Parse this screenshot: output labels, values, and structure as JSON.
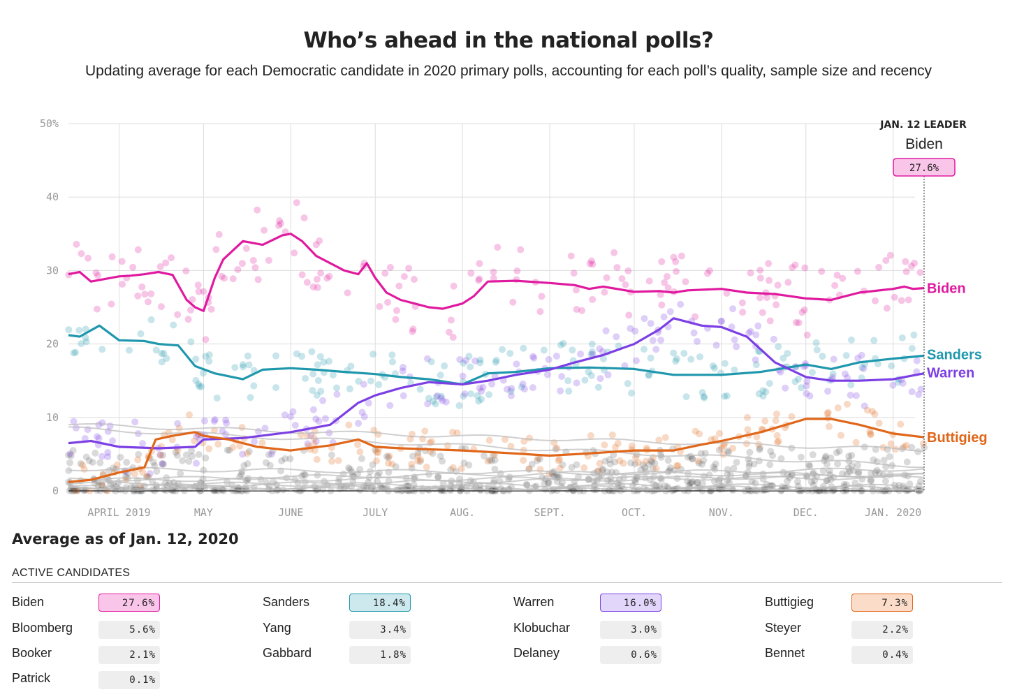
{
  "title": "Who’s ahead in the national polls?",
  "subtitle": "Updating average for each Democratic candidate in 2020 primary polls, accounting for each poll’s quality, sample size and recency",
  "leader": {
    "heading": "JAN. 12 LEADER",
    "name": "Biden",
    "value": "27.6%"
  },
  "average_title": "Average as of Jan. 12, 2020",
  "active_label": "ACTIVE CANDIDATES",
  "candidates": [
    {
      "name": "Biden",
      "value": "27.6%",
      "color": "#e01a9f",
      "fill": "#f9c6ea"
    },
    {
      "name": "Sanders",
      "value": "18.4%",
      "color": "#1f97ad",
      "fill": "#cde9ee"
    },
    {
      "name": "Warren",
      "value": "16.0%",
      "color": "#7b3fe4",
      "fill": "#e2d6fb"
    },
    {
      "name": "Buttigieg",
      "value": "7.3%",
      "color": "#e06619",
      "fill": "#fbdcc8"
    },
    {
      "name": "Bloomberg",
      "value": "5.6%"
    },
    {
      "name": "Yang",
      "value": "3.4%"
    },
    {
      "name": "Klobuchar",
      "value": "3.0%"
    },
    {
      "name": "Steyer",
      "value": "2.2%"
    },
    {
      "name": "Booker",
      "value": "2.1%"
    },
    {
      "name": "Gabbard",
      "value": "1.8%"
    },
    {
      "name": "Delaney",
      "value": "0.6%"
    },
    {
      "name": "Bennet",
      "value": "0.4%"
    },
    {
      "name": "Patrick",
      "value": "0.1%"
    }
  ],
  "chart_data": {
    "type": "line",
    "title": "Who’s ahead in the national polls?",
    "ylabel": "",
    "ylim": [
      0,
      50
    ],
    "yticks": [
      "0",
      "10",
      "20",
      "30",
      "40",
      "50%"
    ],
    "x_tick_labels": [
      "APRIL 2019",
      "MAY",
      "JUNE",
      "JULY",
      "AUG.",
      "SEPT.",
      "OCT.",
      "NOV.",
      "DEC.",
      "JAN. 2020"
    ],
    "x_tick_dates": [
      "2019-04-01",
      "2019-05-01",
      "2019-06-01",
      "2019-07-01",
      "2019-08-01",
      "2019-09-01",
      "2019-10-01",
      "2019-11-01",
      "2019-12-01",
      "2020-01-01"
    ],
    "xlim": [
      "2019-03-14",
      "2020-01-12"
    ],
    "grid": true,
    "series": [
      {
        "name": "Biden",
        "color": "#e01a9f",
        "x": [
          "2019-03-14",
          "2019-03-18",
          "2019-03-22",
          "2019-04-01",
          "2019-04-05",
          "2019-04-10",
          "2019-04-15",
          "2019-04-20",
          "2019-04-25",
          "2019-04-28",
          "2019-05-01",
          "2019-05-05",
          "2019-05-08",
          "2019-05-15",
          "2019-05-22",
          "2019-05-29",
          "2019-06-01",
          "2019-06-05",
          "2019-06-10",
          "2019-06-15",
          "2019-06-20",
          "2019-06-25",
          "2019-06-28",
          "2019-07-01",
          "2019-07-05",
          "2019-07-10",
          "2019-07-15",
          "2019-07-20",
          "2019-07-25",
          "2019-08-01",
          "2019-08-05",
          "2019-08-10",
          "2019-08-20",
          "2019-09-01",
          "2019-09-10",
          "2019-09-15",
          "2019-09-20",
          "2019-10-01",
          "2019-10-10",
          "2019-10-15",
          "2019-10-20",
          "2019-11-01",
          "2019-11-10",
          "2019-11-20",
          "2019-12-01",
          "2019-12-10",
          "2019-12-15",
          "2019-12-20",
          "2020-01-01",
          "2020-01-05",
          "2020-01-08",
          "2020-01-12"
        ],
        "y": [
          29.5,
          29.8,
          28.5,
          29.2,
          29.3,
          29.5,
          29.8,
          29.4,
          26,
          25,
          24.5,
          29,
          31.5,
          34,
          33.5,
          34.8,
          35,
          34,
          32,
          31,
          30,
          29.5,
          31,
          29,
          27,
          26,
          25.5,
          25,
          24.8,
          25.5,
          26.5,
          28.5,
          28.6,
          28.3,
          28,
          27.5,
          27.8,
          27.1,
          27.2,
          27,
          27.3,
          27.5,
          27,
          26.8,
          26.2,
          26,
          26.5,
          27,
          27.5,
          27.8,
          27.5,
          27.6
        ]
      },
      {
        "name": "Sanders",
        "color": "#1f97ad",
        "x": [
          "2019-03-14",
          "2019-03-18",
          "2019-03-25",
          "2019-04-01",
          "2019-04-10",
          "2019-04-15",
          "2019-04-22",
          "2019-04-28",
          "2019-05-05",
          "2019-05-15",
          "2019-05-22",
          "2019-06-01",
          "2019-06-10",
          "2019-06-20",
          "2019-07-01",
          "2019-07-10",
          "2019-07-20",
          "2019-08-01",
          "2019-08-10",
          "2019-08-20",
          "2019-09-01",
          "2019-09-15",
          "2019-10-01",
          "2019-10-15",
          "2019-11-01",
          "2019-11-15",
          "2019-12-01",
          "2019-12-10",
          "2019-12-20",
          "2020-01-01",
          "2020-01-12"
        ],
        "y": [
          21.2,
          21,
          22.5,
          20.5,
          20.4,
          20,
          19.8,
          17,
          16,
          15.2,
          16.5,
          16.7,
          16.5,
          16.2,
          15.9,
          15.5,
          15.2,
          14.5,
          16,
          16.2,
          16.7,
          16.8,
          16.6,
          15.8,
          15.8,
          16.2,
          17.2,
          16.6,
          17.5,
          18,
          18.4
        ]
      },
      {
        "name": "Warren",
        "color": "#7b3fe4",
        "x": [
          "2019-03-14",
          "2019-03-22",
          "2019-04-01",
          "2019-04-15",
          "2019-04-28",
          "2019-05-01",
          "2019-05-15",
          "2019-06-01",
          "2019-06-15",
          "2019-06-25",
          "2019-07-01",
          "2019-07-10",
          "2019-07-20",
          "2019-08-01",
          "2019-08-10",
          "2019-08-20",
          "2019-09-01",
          "2019-09-10",
          "2019-09-20",
          "2019-10-01",
          "2019-10-10",
          "2019-10-15",
          "2019-10-25",
          "2019-11-01",
          "2019-11-10",
          "2019-11-20",
          "2019-12-01",
          "2019-12-10",
          "2019-12-20",
          "2020-01-01",
          "2020-01-12"
        ],
        "y": [
          6.5,
          6.8,
          6,
          5.8,
          6,
          7,
          7.2,
          8,
          9,
          12,
          13,
          14,
          14.8,
          14.5,
          15,
          15.8,
          16.5,
          17.5,
          18.5,
          20,
          22,
          23.5,
          22.5,
          22.3,
          21,
          17.5,
          15.5,
          15,
          15,
          15.2,
          16
        ]
      },
      {
        "name": "Buttigieg",
        "color": "#e06619",
        "x": [
          "2019-03-14",
          "2019-03-22",
          "2019-04-01",
          "2019-04-10",
          "2019-04-14",
          "2019-04-20",
          "2019-04-28",
          "2019-05-01",
          "2019-05-10",
          "2019-05-20",
          "2019-06-01",
          "2019-06-15",
          "2019-06-25",
          "2019-07-01",
          "2019-07-10",
          "2019-08-01",
          "2019-08-15",
          "2019-09-01",
          "2019-09-15",
          "2019-10-01",
          "2019-10-15",
          "2019-10-25",
          "2019-11-01",
          "2019-11-15",
          "2019-12-01",
          "2019-12-10",
          "2019-12-20",
          "2020-01-01",
          "2020-01-12"
        ],
        "y": [
          1.2,
          1.5,
          2.5,
          3.2,
          7,
          7.5,
          8,
          7.5,
          7,
          6,
          5.5,
          6.2,
          7,
          6,
          5.8,
          5.5,
          5.2,
          4.8,
          5.1,
          5.5,
          5.5,
          6.3,
          6.8,
          8,
          9.8,
          9.8,
          9,
          7.8,
          7.3
        ]
      }
    ],
    "other_candidates_gray": [
      "Bloomberg",
      "Yang",
      "Klobuchar",
      "Steyer",
      "Booker",
      "Gabbard",
      "Delaney",
      "Bennet",
      "Patrick"
    ]
  }
}
